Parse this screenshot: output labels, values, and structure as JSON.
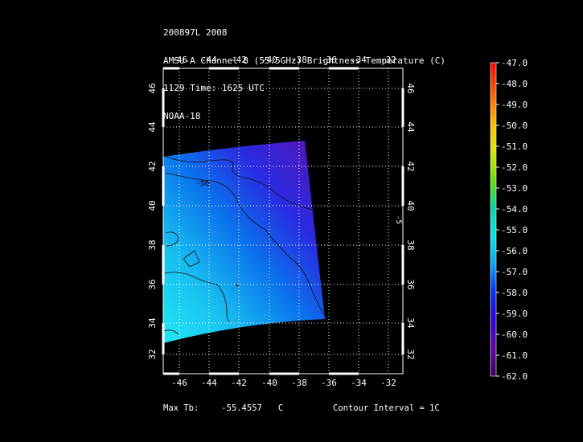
{
  "header": {
    "line1": "200897L 2008",
    "line2": "AMSU-A Channel 8 (55.5GHz) Brightness Temperature (C)",
    "line3": "1129 Time: 1625 UTC",
    "line4": "NOAA-18"
  },
  "map": {
    "lon_ticks": [
      "-46",
      "-44",
      "-42",
      "-40",
      "-38",
      "-36",
      "-34",
      "-32"
    ],
    "lat_ticks": [
      "46",
      "44",
      "42",
      "40",
      "38",
      "36",
      "34",
      "32"
    ],
    "contour_label": "-56",
    "contour_label_right": "-5"
  },
  "colorbar": {
    "labels": [
      "-47.0",
      "-48.0",
      "-49.0",
      "-50.0",
      "-51.0",
      "-52.0",
      "-53.0",
      "-54.0",
      "-55.0",
      "-56.0",
      "-57.0",
      "-58.0",
      "-59.0",
      "-60.0",
      "-61.0",
      "-62.0"
    ]
  },
  "footer": {
    "max_label": "Max Tb:",
    "max_value": "-55.4557",
    "max_unit": "C",
    "contour_interval": "Contour Interval = 1C"
  }
}
